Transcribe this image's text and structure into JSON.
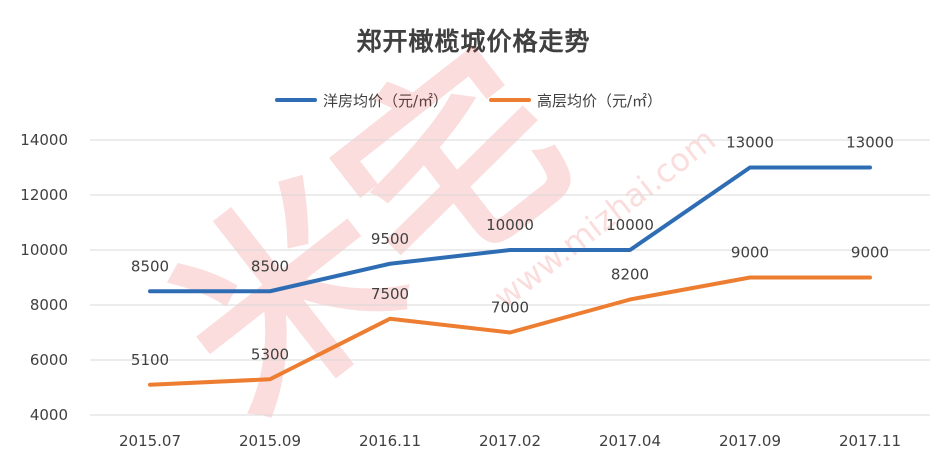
{
  "chart_data": {
    "type": "line",
    "title": "郑开橄榄城价格走势",
    "categories": [
      "2015.07",
      "2015.09",
      "2016.11",
      "2017.02",
      "2017.04",
      "2017.09",
      "2017.11"
    ],
    "series": [
      {
        "name": "洋房均价（元/㎡）",
        "color": "#2E6DB4",
        "values": [
          8500,
          8500,
          9500,
          10000,
          10000,
          13000,
          13000
        ]
      },
      {
        "name": "高层均价（元/㎡）",
        "color": "#ED7D31",
        "values": [
          5100,
          5300,
          7500,
          7000,
          8200,
          9000,
          9000
        ]
      }
    ],
    "yticks": [
      4000,
      6000,
      8000,
      10000,
      12000,
      14000
    ],
    "ylim": [
      4000,
      14000
    ],
    "grid": true,
    "legend_position": "top-center",
    "xlabel": "",
    "ylabel": ""
  },
  "watermark": {
    "text": "米宅",
    "url": "www.mizhai.com",
    "color": "#E2342B"
  }
}
